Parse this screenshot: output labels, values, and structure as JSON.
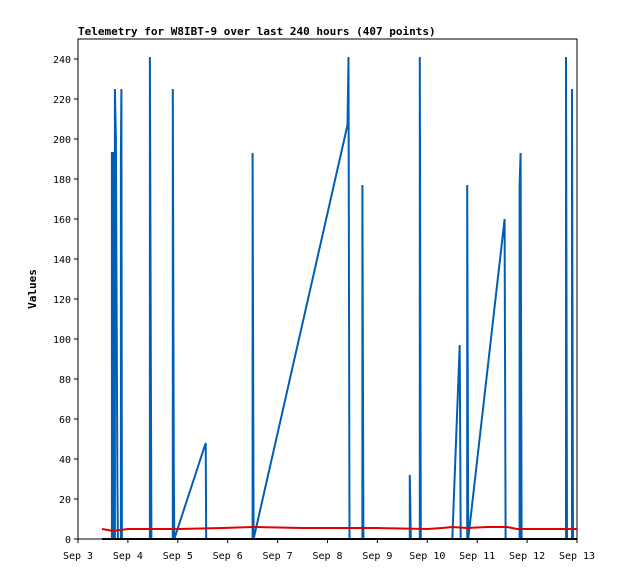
{
  "chart_data": {
    "type": "line",
    "title": "Telemetry for W8IBT-9 over last 240 hours (407 points)",
    "xlabel": "",
    "ylabel": "Values",
    "ylim": [
      0,
      250
    ],
    "xlim": [
      0,
      10
    ],
    "yticks": [
      0,
      20,
      40,
      60,
      80,
      100,
      120,
      140,
      160,
      180,
      200,
      220,
      240
    ],
    "xticks": [
      {
        "x": 0,
        "label": "Sep 3"
      },
      {
        "x": 1,
        "label": "Sep 4"
      },
      {
        "x": 2,
        "label": "Sep 5"
      },
      {
        "x": 3,
        "label": "Sep 6"
      },
      {
        "x": 4,
        "label": "Sep 7"
      },
      {
        "x": 5,
        "label": "Sep 8"
      },
      {
        "x": 6,
        "label": "Sep 9"
      },
      {
        "x": 7,
        "label": "Sep 10"
      },
      {
        "x": 8,
        "label": "Sep 11"
      },
      {
        "x": 9,
        "label": "Sep 12"
      },
      {
        "x": 10,
        "label": "Sep 13"
      }
    ],
    "grid": false,
    "series": [
      {
        "color": "#005fb4",
        "points": [
          [
            0.68,
            0
          ],
          [
            0.68,
            193
          ],
          [
            0.7,
            193
          ],
          [
            0.7,
            0
          ],
          [
            0.74,
            0
          ],
          [
            0.74,
            225
          ],
          [
            0.76,
            200
          ],
          [
            0.77,
            140
          ],
          [
            0.78,
            85
          ],
          [
            0.79,
            28
          ],
          [
            0.8,
            0
          ],
          [
            0.86,
            0
          ],
          [
            0.86,
            193
          ],
          [
            0.87,
            225
          ],
          [
            0.88,
            0
          ],
          [
            1.44,
            0
          ],
          [
            1.44,
            241
          ],
          [
            1.46,
            80
          ],
          [
            1.47,
            0
          ],
          [
            1.9,
            0
          ],
          [
            1.9,
            225
          ],
          [
            1.92,
            32
          ],
          [
            1.93,
            0
          ],
          [
            2.56,
            48
          ],
          [
            2.57,
            0
          ],
          [
            3.5,
            0
          ],
          [
            3.5,
            193
          ],
          [
            3.52,
            0
          ],
          [
            5.4,
            207
          ],
          [
            5.42,
            241
          ],
          [
            5.43,
            120
          ],
          [
            5.44,
            0
          ],
          [
            5.7,
            0
          ],
          [
            5.7,
            177
          ],
          [
            5.72,
            0
          ],
          [
            6.65,
            0
          ],
          [
            6.65,
            32
          ],
          [
            6.67,
            0
          ],
          [
            6.85,
            0
          ],
          [
            6.85,
            241
          ],
          [
            6.87,
            0
          ],
          [
            7.5,
            0
          ],
          [
            7.65,
            97
          ],
          [
            7.67,
            0
          ],
          [
            7.8,
            0
          ],
          [
            7.8,
            177
          ],
          [
            7.82,
            0
          ],
          [
            8.55,
            160
          ],
          [
            8.57,
            0
          ],
          [
            8.85,
            0
          ],
          [
            8.85,
            177
          ],
          [
            8.87,
            193
          ],
          [
            8.89,
            0
          ],
          [
            9.78,
            0
          ],
          [
            9.78,
            241
          ],
          [
            9.8,
            0
          ],
          [
            9.9,
            0
          ],
          [
            9.9,
            225
          ],
          [
            9.92,
            0
          ]
        ]
      },
      {
        "color": "#e00000",
        "points": [
          [
            0.48,
            5
          ],
          [
            0.6,
            4.5
          ],
          [
            0.7,
            4
          ],
          [
            1.0,
            5
          ],
          [
            2.0,
            5
          ],
          [
            2.9,
            5.5
          ],
          [
            3.5,
            6
          ],
          [
            4.5,
            5.5
          ],
          [
            6.0,
            5.5
          ],
          [
            7.0,
            5
          ],
          [
            7.3,
            5.5
          ],
          [
            7.5,
            6
          ],
          [
            7.8,
            5.5
          ],
          [
            8.2,
            6
          ],
          [
            8.6,
            6
          ],
          [
            8.8,
            5
          ],
          [
            9.0,
            5
          ],
          [
            9.5,
            5
          ],
          [
            10.0,
            5
          ]
        ]
      },
      {
        "color": "#000000",
        "points": [
          [
            0.48,
            0
          ],
          [
            10.0,
            0
          ]
        ]
      }
    ]
  }
}
